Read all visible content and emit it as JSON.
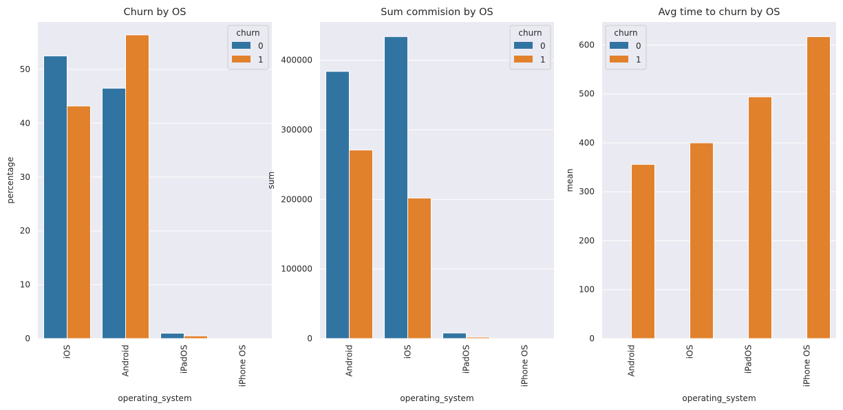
{
  "colors": {
    "background": "#eaeaf2",
    "grid": "#ffffff",
    "series0": "#3274a1",
    "series1": "#e1812c"
  },
  "chart_data": [
    {
      "type": "bar",
      "title": "Churn by OS",
      "xlabel": "operating_system",
      "ylabel": "percentage",
      "categories": [
        "iOS",
        "Android",
        "iPadOS",
        "iPhone OS"
      ],
      "ylim": [
        0,
        58.8
      ],
      "yticks": [
        "0",
        "10",
        "20",
        "30",
        "40",
        "50"
      ],
      "ytick_values": [
        0,
        10,
        20,
        30,
        40,
        50
      ],
      "legend": {
        "title": "churn",
        "placement": "top-right"
      },
      "series": [
        {
          "name": "0",
          "values": [
            52.5,
            46.5,
            1.0,
            0
          ]
        },
        {
          "name": "1",
          "values": [
            43.2,
            56.4,
            0.5,
            0
          ]
        }
      ]
    },
    {
      "type": "bar",
      "title": "Sum commision by OS",
      "xlabel": "operating_system",
      "ylabel": "sum",
      "categories": [
        "Android",
        "iOS",
        "iPadOS",
        "iPhone OS"
      ],
      "ylim": [
        0,
        455000
      ],
      "yticks": [
        "0",
        "100000",
        "200000",
        "300000",
        "400000"
      ],
      "ytick_values": [
        0,
        100000,
        200000,
        300000,
        400000
      ],
      "legend": {
        "title": "churn",
        "placement": "top-right"
      },
      "series": [
        {
          "name": "0",
          "values": [
            384000,
            434000,
            8000,
            0
          ]
        },
        {
          "name": "1",
          "values": [
            271000,
            202000,
            2000,
            0
          ]
        }
      ]
    },
    {
      "type": "bar",
      "title": "Avg time to churn by OS",
      "xlabel": "operating_system",
      "ylabel": "mean",
      "categories": [
        "Android",
        "iOS",
        "iPadOS",
        "iPhone OS"
      ],
      "ylim": [
        0,
        647
      ],
      "yticks": [
        "0",
        "100",
        "200",
        "300",
        "400",
        "500",
        "600"
      ],
      "ytick_values": [
        0,
        100,
        200,
        300,
        400,
        500,
        600
      ],
      "legend": {
        "title": "churn",
        "placement": "top-left"
      },
      "series": [
        {
          "name": "0",
          "values": [
            0,
            0,
            0,
            0
          ]
        },
        {
          "name": "1",
          "values": [
            356,
            400,
            494,
            617
          ]
        }
      ]
    }
  ]
}
